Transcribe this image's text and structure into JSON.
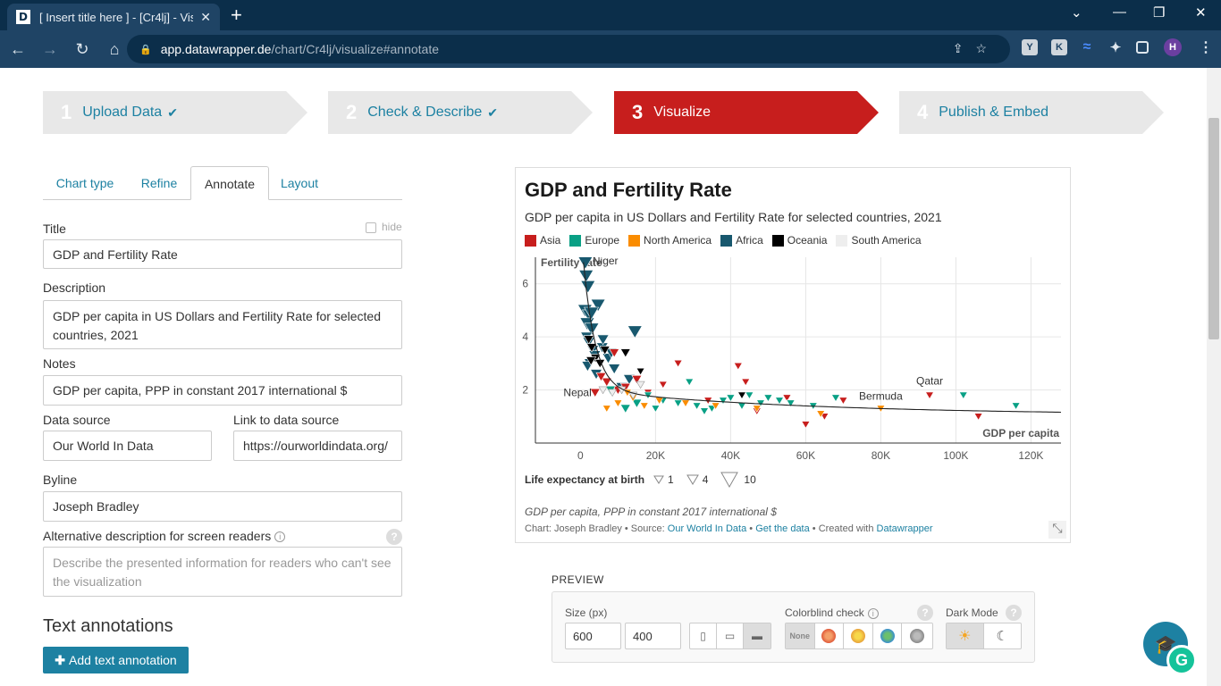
{
  "browser": {
    "tab_title": "[ Insert title here ] - [Cr4lj] - Visu",
    "favicon_letter": "D",
    "url_host": "app.datawrapper.de",
    "url_path": "/chart/Cr4lj/visualize#annotate"
  },
  "steps": [
    {
      "num": "1",
      "label": "Upload Data",
      "done": true
    },
    {
      "num": "2",
      "label": "Check & Describe",
      "done": true
    },
    {
      "num": "3",
      "label": "Visualize",
      "done": false
    },
    {
      "num": "4",
      "label": "Publish & Embed",
      "done": false
    }
  ],
  "tabs": [
    "Chart type",
    "Refine",
    "Annotate",
    "Layout"
  ],
  "form": {
    "title_label": "Title",
    "hide_label": "hide",
    "title_value": "GDP and Fertility Rate",
    "description_label": "Description",
    "description_value": "GDP per capita in US Dollars and Fertility Rate for selected countries, 2021",
    "notes_label": "Notes",
    "notes_value": "GDP per capita, PPP in constant 2017 international $",
    "source_label": "Data source",
    "source_value": "Our World In Data",
    "link_label": "Link to data source",
    "link_value": "https://ourworldindata.org/",
    "byline_label": "Byline",
    "byline_value": "Joseph Bradley",
    "alt_label": "Alternative description for screen readers",
    "alt_placeholder": "Describe the presented information for readers who can't see the visualization",
    "annotations_heading": "Text annotations",
    "add_annotation_label": "Add text annotation"
  },
  "chart": {
    "title": "GDP and Fertility Rate",
    "subtitle": "GDP per capita in US Dollars and Fertility Rate for selected countries, 2021",
    "legend": [
      {
        "name": "Asia",
        "color": "#c71e1d"
      },
      {
        "name": "Europe",
        "color": "#09a085"
      },
      {
        "name": "North America",
        "color": "#fa8c00"
      },
      {
        "name": "Africa",
        "color": "#18586e"
      },
      {
        "name": "Oceania",
        "color": "#000000"
      },
      {
        "name": "South America",
        "color": "#eeeeee"
      }
    ],
    "size_legend_label": "Life expectancy at birth",
    "size_legend_values": [
      "1",
      "4",
      "10"
    ],
    "notes": "GDP per capita, PPP in constant 2017 international $",
    "footer_prefix": "Chart: Joseph Bradley • Source: ",
    "footer_source": "Our World In Data",
    "footer_sep": " • ",
    "footer_getdata": "Get the data",
    "footer_created": " • Created with ",
    "footer_dw": "Datawrapper"
  },
  "chart_data": {
    "type": "scatter",
    "xlabel": "GDP per capita",
    "ylabel": "Fertility rate",
    "xlim": [
      -12000,
      128000
    ],
    "ylim": [
      0,
      7
    ],
    "x_ticks": [
      "0",
      "20K",
      "40K",
      "60K",
      "80K",
      "100K",
      "120K"
    ],
    "y_ticks": [
      "2",
      "4",
      "6"
    ],
    "labeled_points": [
      {
        "label": "Niger",
        "x": 1300,
        "y": 6.8
      },
      {
        "label": "Nepal",
        "x": 3900,
        "y": 1.9
      },
      {
        "label": "Bermuda",
        "x": 80000,
        "y": 1.3
      },
      {
        "label": "Qatar",
        "x": 93000,
        "y": 1.8
      }
    ],
    "series": [
      {
        "name": "Africa",
        "points": [
          [
            1300,
            6.8
          ],
          [
            1500,
            6.3
          ],
          [
            2000,
            5.9
          ],
          [
            4700,
            5.2
          ],
          [
            1200,
            5.0
          ],
          [
            2400,
            4.8
          ],
          [
            1800,
            4.5
          ],
          [
            3000,
            4.3
          ],
          [
            14500,
            4.2
          ],
          [
            1600,
            4.0
          ],
          [
            2200,
            3.8
          ],
          [
            5800,
            3.6
          ],
          [
            3300,
            3.5
          ],
          [
            7400,
            3.2
          ],
          [
            2500,
            3.0
          ],
          [
            1900,
            2.9
          ],
          [
            9000,
            2.8
          ],
          [
            4200,
            2.6
          ],
          [
            13000,
            2.4
          ],
          [
            11000,
            2.1
          ],
          [
            6000,
            3.9
          ],
          [
            3800,
            3.3
          ],
          [
            8200,
            3.4
          ],
          [
            2900,
            4.9
          ]
        ]
      },
      {
        "name": "Asia",
        "points": [
          [
            3900,
            1.9
          ],
          [
            7000,
            2.3
          ],
          [
            10000,
            2.0
          ],
          [
            12000,
            2.1
          ],
          [
            15000,
            2.4
          ],
          [
            26000,
            3.0
          ],
          [
            34000,
            1.6
          ],
          [
            42000,
            2.9
          ],
          [
            44000,
            2.3
          ],
          [
            55000,
            1.7
          ],
          [
            60000,
            0.7
          ],
          [
            65000,
            1.0
          ],
          [
            70000,
            1.6
          ],
          [
            93000,
            1.8
          ],
          [
            106000,
            1.0
          ],
          [
            9000,
            3.4
          ],
          [
            5500,
            2.5
          ],
          [
            18000,
            1.9
          ],
          [
            47000,
            1.2
          ],
          [
            22000,
            2.2
          ]
        ]
      },
      {
        "name": "Europe",
        "points": [
          [
            8000,
            2.0
          ],
          [
            12000,
            1.3
          ],
          [
            15000,
            1.5
          ],
          [
            18000,
            1.8
          ],
          [
            22000,
            1.6
          ],
          [
            26000,
            1.5
          ],
          [
            29000,
            2.3
          ],
          [
            31000,
            1.4
          ],
          [
            35000,
            1.3
          ],
          [
            38000,
            1.6
          ],
          [
            40000,
            1.7
          ],
          [
            45000,
            1.8
          ],
          [
            48000,
            1.5
          ],
          [
            50000,
            1.7
          ],
          [
            53000,
            1.6
          ],
          [
            56000,
            1.5
          ],
          [
            62000,
            1.4
          ],
          [
            68000,
            1.7
          ],
          [
            102000,
            1.8
          ],
          [
            116000,
            1.4
          ],
          [
            20000,
            1.3
          ],
          [
            33000,
            1.2
          ],
          [
            43000,
            1.4
          ]
        ]
      },
      {
        "name": "North America",
        "points": [
          [
            7000,
            1.3
          ],
          [
            10000,
            1.5
          ],
          [
            14000,
            1.7
          ],
          [
            17000,
            1.4
          ],
          [
            21000,
            1.6
          ],
          [
            28000,
            1.5
          ],
          [
            36000,
            1.4
          ],
          [
            47000,
            1.3
          ],
          [
            64000,
            1.1
          ],
          [
            80000,
            1.3
          ],
          [
            12500,
            1.9
          ]
        ]
      },
      {
        "name": "Oceania",
        "points": [
          [
            2200,
            3.9
          ],
          [
            3000,
            3.6
          ],
          [
            4000,
            3.2
          ],
          [
            5200,
            3.0
          ],
          [
            6500,
            3.5
          ],
          [
            2800,
            3.1
          ],
          [
            43000,
            1.8
          ],
          [
            16000,
            2.7
          ],
          [
            12000,
            3.4
          ]
        ]
      },
      {
        "name": "South America",
        "points": [
          [
            6000,
            2.0
          ],
          [
            8500,
            1.9
          ],
          [
            11000,
            2.0
          ],
          [
            14000,
            1.8
          ],
          [
            16000,
            2.2
          ]
        ]
      }
    ]
  },
  "preview": {
    "label": "PREVIEW",
    "size_label": "Size (px)",
    "width_value": "600",
    "height_value": "400",
    "colorblind_label": "Colorblind check",
    "none_label": "None",
    "darkmode_label": "Dark Mode"
  }
}
